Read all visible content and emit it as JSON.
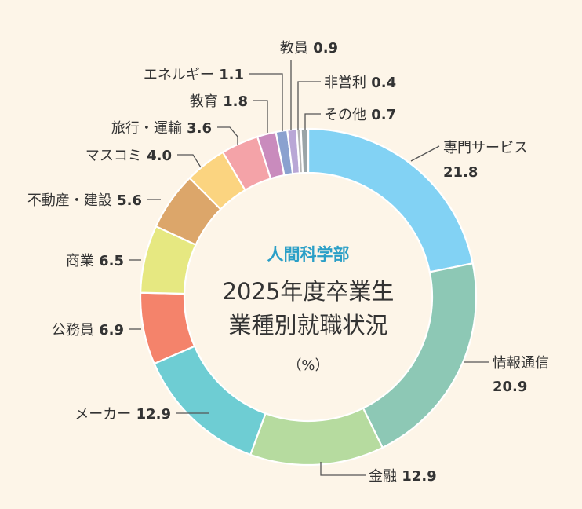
{
  "chart_data": {
    "type": "pie",
    "department": "人間科学部",
    "title_line1": "2025年度卒業生",
    "title_line2": "業種別就職状況",
    "unit": "（%）",
    "slices": [
      {
        "label": "専門サービス",
        "value": 21.8,
        "color": "#82d2f4"
      },
      {
        "label": "情報通信",
        "value": 20.9,
        "color": "#8dc8b5"
      },
      {
        "label": "金融",
        "value": 12.9,
        "color": "#b6db9f"
      },
      {
        "label": "メーカー",
        "value": 12.9,
        "color": "#6ecdd3"
      },
      {
        "label": "公務員",
        "value": 6.9,
        "color": "#f4836b"
      },
      {
        "label": "商業",
        "value": 6.5,
        "color": "#e6e881"
      },
      {
        "label": "不動産・建設",
        "value": 5.6,
        "color": "#dca66a"
      },
      {
        "label": "マスコミ",
        "value": 4.0,
        "color": "#fbd480"
      },
      {
        "label": "旅行・運輸",
        "value": 3.6,
        "color": "#f4a3a8"
      },
      {
        "label": "教育",
        "value": 1.8,
        "color": "#c98bbd"
      },
      {
        "label": "エネルギー",
        "value": 1.1,
        "color": "#8aa1cf"
      },
      {
        "label": "教員",
        "value": 0.9,
        "color": "#b9a7d6"
      },
      {
        "label": "非営利",
        "value": 0.4,
        "color": "#b4b4b4"
      },
      {
        "label": "その他",
        "value": 0.7,
        "color": "#9aa4a7"
      }
    ]
  }
}
